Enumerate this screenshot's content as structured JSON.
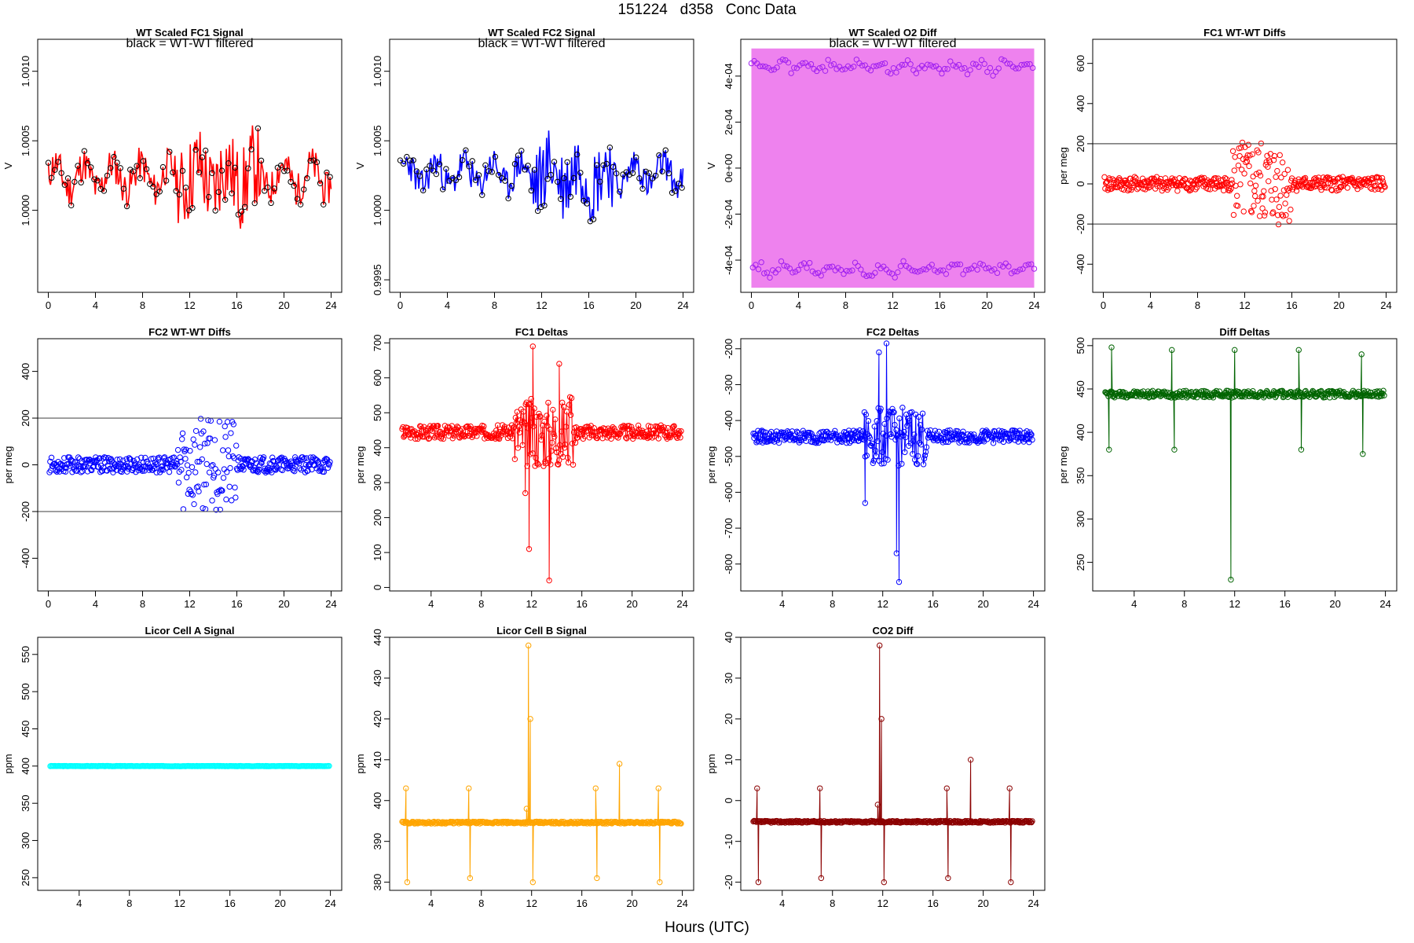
{
  "figure": {
    "title": "151224   d358   Conc Data",
    "xlabel": "Hours (UTC)"
  },
  "chart_data": [
    {
      "id": "p1",
      "title": "WT Scaled FC1 Signal",
      "subtitle": "black = WT-WT filtered",
      "type": "line",
      "ylabel": "V",
      "xlim": [
        -0.9,
        24.9
      ],
      "ylim": [
        0.99941,
        1.00123
      ],
      "xticks": [
        0,
        4,
        8,
        12,
        16,
        20,
        24
      ],
      "yticks": [
        {
          "v": 1.0,
          "t": "1.0000"
        },
        {
          "v": 1.0005,
          "t": "1.0005"
        },
        {
          "v": 1.001,
          "t": "1.0010"
        }
      ],
      "color": "#ff0000",
      "series": {
        "kind": "wave",
        "mid": 1.00024,
        "amp": 0.00021,
        "x0": 0,
        "x1": 24,
        "n": 260,
        "seed": 11,
        "burst": [
          11,
          18,
          2.4
        ]
      },
      "points_color": "#000000"
    },
    {
      "id": "p2",
      "title": "WT Scaled FC2 Signal",
      "subtitle": "black = WT-WT filtered",
      "type": "line",
      "ylabel": "V",
      "xlim": [
        -0.9,
        24.9
      ],
      "ylim": [
        0.99941,
        1.00123
      ],
      "xticks": [
        0,
        4,
        8,
        12,
        16,
        20,
        24
      ],
      "yticks": [
        {
          "v": 0.9995,
          "t": "0.9995"
        },
        {
          "v": 1.0,
          "t": "1.0000"
        },
        {
          "v": 1.0005,
          "t": "1.0005"
        },
        {
          "v": 1.001,
          "t": "1.0010"
        }
      ],
      "color": "#0000ff",
      "series": {
        "kind": "wave",
        "mid": 1.00026,
        "amp": 0.00019,
        "x0": 0,
        "x1": 24,
        "n": 260,
        "seed": 23,
        "burst": [
          11,
          18,
          2.4
        ]
      },
      "points_color": "#000000"
    },
    {
      "id": "p3",
      "title": "WT Scaled O2 Diff",
      "subtitle": "black = WT-WT filtered",
      "type": "line",
      "ylabel": "V",
      "xlim": [
        -0.9,
        24.9
      ],
      "ylim": [
        -0.00054,
        0.00056
      ],
      "xticks": [
        0,
        4,
        8,
        12,
        16,
        20,
        24
      ],
      "yticks": [
        {
          "v": -0.0004,
          "t": "-4e-04"
        },
        {
          "v": -0.0002,
          "t": "-2e-04"
        },
        {
          "v": 0,
          "t": "0e+00"
        },
        {
          "v": 0.0002,
          "t": "2e-04"
        },
        {
          "v": 0.0004,
          "t": "4e-04"
        }
      ],
      "color": "#ee82ee",
      "series": {
        "kind": "band",
        "hi": 0.00044,
        "lo": -0.00044,
        "x0": 0,
        "x1": 24,
        "n": 200,
        "seed": 5
      },
      "points_color": "#a020f0"
    },
    {
      "id": "p4",
      "title": "FC1 WT-WT Diffs",
      "type": "scatter",
      "ylabel": "per meg",
      "xlim": [
        -0.9,
        24.9
      ],
      "ylim": [
        -540,
        720
      ],
      "xticks": [
        0,
        4,
        8,
        12,
        16,
        20,
        24
      ],
      "yticks": [
        {
          "v": -400,
          "t": "-400"
        },
        {
          "v": -200,
          "t": "-200"
        },
        {
          "v": 0,
          "t": "0"
        },
        {
          "v": 200,
          "t": "200"
        },
        {
          "v": 400,
          "t": "400"
        },
        {
          "v": 600,
          "t": "600"
        }
      ],
      "hlines": [
        200,
        -200
      ],
      "color": "#ff0000",
      "series": {
        "kind": "scatter",
        "center": 0,
        "spread": 35,
        "x0": 0.1,
        "x1": 23.9,
        "n": 420,
        "seed": 41,
        "burst": [
          11,
          16,
          6
        ]
      }
    },
    {
      "id": "p5",
      "title": "FC2 WT-WT Diffs",
      "type": "scatter",
      "ylabel": "per meg",
      "xlim": [
        -0.9,
        24.9
      ],
      "ylim": [
        -540,
        540
      ],
      "xticks": [
        0,
        4,
        8,
        12,
        16,
        20,
        24
      ],
      "yticks": [
        {
          "v": -400,
          "t": "-400"
        },
        {
          "v": -200,
          "t": "-200"
        },
        {
          "v": 0,
          "t": "0"
        },
        {
          "v": 200,
          "t": "200"
        },
        {
          "v": 400,
          "t": "400"
        }
      ],
      "hlines": [
        200,
        -200
      ],
      "color": "#0000ff",
      "series": {
        "kind": "scatter",
        "center": 0,
        "spread": 33,
        "x0": 0.1,
        "x1": 23.9,
        "n": 420,
        "seed": 53,
        "burst": [
          11,
          16,
          6
        ]
      }
    },
    {
      "id": "p6",
      "title": "FC1 Deltas",
      "type": "line",
      "ylabel": "per meg",
      "xlim": [
        0.7,
        24.9
      ],
      "ylim": [
        -10,
        712
      ],
      "xticks": [
        4,
        8,
        12,
        16,
        20,
        24
      ],
      "yticks": [
        {
          "v": 0,
          "t": "0"
        },
        {
          "v": 100,
          "t": "100"
        },
        {
          "v": 200,
          "t": "200"
        },
        {
          "v": 300,
          "t": "300"
        },
        {
          "v": 400,
          "t": "400"
        },
        {
          "v": 500,
          "t": "500"
        },
        {
          "v": 600,
          "t": "600"
        },
        {
          "v": 700,
          "t": "700"
        }
      ],
      "color": "#ff0000",
      "series": {
        "kind": "noisy",
        "center": 445,
        "spread": 20,
        "x0": 1.7,
        "x1": 23.9,
        "n": 360,
        "seed": 67,
        "burst": [
          10.5,
          15.5,
          5
        ],
        "spikes": [
          [
            11.8,
            110
          ],
          [
            13.4,
            20
          ],
          [
            12.1,
            690
          ],
          [
            14.2,
            640
          ],
          [
            11.5,
            270
          ]
        ]
      }
    },
    {
      "id": "p7",
      "title": "FC2 Deltas",
      "type": "line",
      "ylabel": "per meg",
      "xlim": [
        0.7,
        24.9
      ],
      "ylim": [
        -875,
        -172
      ],
      "xticks": [
        4,
        8,
        12,
        16,
        20,
        24
      ],
      "yticks": [
        {
          "v": -800,
          "t": "-800"
        },
        {
          "v": -700,
          "t": "-700"
        },
        {
          "v": -600,
          "t": "-600"
        },
        {
          "v": -500,
          "t": "-500"
        },
        {
          "v": -400,
          "t": "-400"
        },
        {
          "v": -300,
          "t": "-300"
        },
        {
          "v": -200,
          "t": "-200"
        }
      ],
      "color": "#0000ff",
      "series": {
        "kind": "noisy",
        "center": -445,
        "spread": 18,
        "x0": 1.7,
        "x1": 23.9,
        "n": 360,
        "seed": 79,
        "burst": [
          10.5,
          15.5,
          4.5
        ],
        "spikes": [
          [
            13.3,
            -850
          ],
          [
            13.1,
            -770
          ],
          [
            12.3,
            -185
          ],
          [
            11.7,
            -210
          ],
          [
            10.6,
            -630
          ]
        ]
      }
    },
    {
      "id": "p8",
      "title": "Diff Deltas",
      "type": "line",
      "ylabel": "per meg",
      "xlim": [
        0.7,
        24.9
      ],
      "ylim": [
        217,
        508
      ],
      "xticks": [
        4,
        8,
        12,
        16,
        20,
        24
      ],
      "yticks": [
        {
          "v": 250,
          "t": "250"
        },
        {
          "v": 300,
          "t": "300"
        },
        {
          "v": 350,
          "t": "350"
        },
        {
          "v": 400,
          "t": "400"
        },
        {
          "v": 450,
          "t": "450"
        },
        {
          "v": 500,
          "t": "500"
        }
      ],
      "color": "#006400",
      "series": {
        "kind": "noisy",
        "center": 444,
        "spread": 4,
        "x0": 1.7,
        "x1": 23.9,
        "n": 360,
        "seed": 97,
        "spikes": [
          [
            2.0,
            380
          ],
          [
            2.2,
            498
          ],
          [
            7.0,
            495
          ],
          [
            7.2,
            380
          ],
          [
            11.7,
            230
          ],
          [
            12.0,
            495
          ],
          [
            17.1,
            495
          ],
          [
            17.3,
            380
          ],
          [
            22.1,
            490
          ],
          [
            22.2,
            375
          ]
        ]
      }
    },
    {
      "id": "p9",
      "title": "Licor Cell A Signal",
      "type": "scatter",
      "ylabel": "ppm",
      "xlim": [
        0.7,
        24.9
      ],
      "ylim": [
        233,
        573
      ],
      "xticks": [
        4,
        8,
        12,
        16,
        20,
        24
      ],
      "yticks": [
        {
          "v": 250,
          "t": "250"
        },
        {
          "v": 300,
          "t": "300"
        },
        {
          "v": 350,
          "t": "350"
        },
        {
          "v": 400,
          "t": "400"
        },
        {
          "v": 450,
          "t": "450"
        },
        {
          "v": 500,
          "t": "500"
        },
        {
          "v": 550,
          "t": "550"
        }
      ],
      "color": "#00ffff",
      "series": {
        "kind": "flat",
        "center": 400,
        "spread": 0.3,
        "x0": 1.7,
        "x1": 23.9,
        "n": 300,
        "seed": 3
      }
    },
    {
      "id": "p10",
      "title": "Licor Cell B Signal",
      "type": "line",
      "ylabel": "ppm",
      "xlim": [
        0.7,
        24.9
      ],
      "ylim": [
        378,
        440
      ],
      "xticks": [
        4,
        8,
        12,
        16,
        20,
        24
      ],
      "yticks": [
        {
          "v": 380,
          "t": "380"
        },
        {
          "v": 390,
          "t": "390"
        },
        {
          "v": 400,
          "t": "400"
        },
        {
          "v": 410,
          "t": "410"
        },
        {
          "v": 420,
          "t": "420"
        },
        {
          "v": 430,
          "t": "430"
        },
        {
          "v": 440,
          "t": "440"
        }
      ],
      "color": "#ffa500",
      "series": {
        "kind": "noisy",
        "center": 394.6,
        "spread": 0.25,
        "x0": 1.7,
        "x1": 23.9,
        "n": 360,
        "seed": 29,
        "spikes": [
          [
            2.0,
            403
          ],
          [
            2.1,
            380
          ],
          [
            7.0,
            403
          ],
          [
            7.1,
            381
          ],
          [
            11.6,
            398
          ],
          [
            11.75,
            438
          ],
          [
            11.9,
            420
          ],
          [
            12.1,
            380
          ],
          [
            17.1,
            403
          ],
          [
            17.2,
            381
          ],
          [
            19.0,
            409
          ],
          [
            22.1,
            403
          ],
          [
            22.2,
            380
          ]
        ]
      }
    },
    {
      "id": "p11",
      "title": "CO2 Diff",
      "type": "line",
      "ylabel": "ppm",
      "xlim": [
        0.7,
        24.9
      ],
      "ylim": [
        -22,
        40
      ],
      "xticks": [
        4,
        8,
        12,
        16,
        20,
        24
      ],
      "yticks": [
        {
          "v": -20,
          "t": "-20"
        },
        {
          "v": -10,
          "t": "-10"
        },
        {
          "v": 0,
          "t": "0"
        },
        {
          "v": 10,
          "t": "10"
        },
        {
          "v": 20,
          "t": "20"
        },
        {
          "v": 30,
          "t": "30"
        },
        {
          "v": 40,
          "t": "40"
        }
      ],
      "color": "#8b0000",
      "series": {
        "kind": "noisy",
        "center": -5.2,
        "spread": 0.25,
        "x0": 1.7,
        "x1": 23.9,
        "n": 360,
        "seed": 37,
        "spikes": [
          [
            2.0,
            3
          ],
          [
            2.1,
            -20
          ],
          [
            7.0,
            3
          ],
          [
            7.1,
            -19
          ],
          [
            11.6,
            -1
          ],
          [
            11.75,
            38
          ],
          [
            11.9,
            20
          ],
          [
            12.1,
            -20
          ],
          [
            17.1,
            3
          ],
          [
            17.2,
            -19
          ],
          [
            19.0,
            10
          ],
          [
            22.1,
            3
          ],
          [
            22.2,
            -20
          ]
        ]
      }
    }
  ]
}
